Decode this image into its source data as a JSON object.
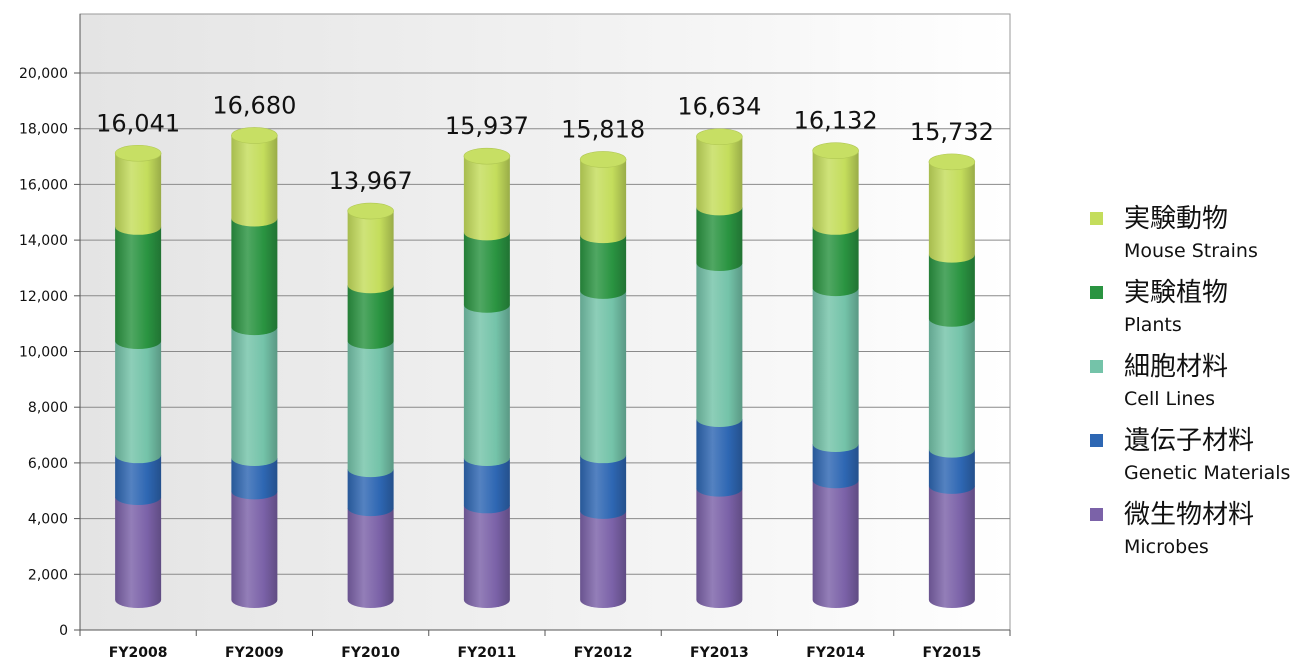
{
  "chart_data": {
    "type": "bar",
    "stacked": true,
    "style": "3d-cylinder",
    "title": "",
    "xlabel": "",
    "ylabel": "",
    "ylim": [
      0,
      22000
    ],
    "yticks": [
      0,
      2000,
      4000,
      6000,
      8000,
      10000,
      12000,
      14000,
      16000,
      18000,
      20000
    ],
    "ytick_labels": [
      "0",
      "2,000",
      "4,000",
      "6,000",
      "8,000",
      "10,000",
      "12,000",
      "14,000",
      "16,000",
      "18,000",
      "20,000"
    ],
    "grid": true,
    "legend_position": "right",
    "categories": [
      "FY2008",
      "FY2009",
      "FY2010",
      "FY2011",
      "FY2012",
      "FY2013",
      "FY2014",
      "FY2015"
    ],
    "totals": [
      16041,
      16680,
      13967,
      15937,
      15818,
      16634,
      16132,
      15732
    ],
    "total_labels": [
      "16,041",
      "16,680",
      "13,967",
      "15,937",
      "15,818",
      "16,634",
      "16,132",
      "15,732"
    ],
    "series": [
      {
        "name": "微生物材料 Microbes",
        "name_jp": "微生物材料",
        "name_en": "Microbes",
        "color": "#7b62a8",
        "values": [
          3700,
          3900,
          3300,
          3400,
          3200,
          4000,
          4300,
          4100
        ]
      },
      {
        "name": "遺伝子材料 Genetic Materials",
        "name_jp": "遺伝子材料",
        "name_en": "Genetic Materials",
        "color": "#2e67b3",
        "values": [
          1500,
          1200,
          1400,
          1700,
          2000,
          2500,
          1300,
          1300
        ]
      },
      {
        "name": "細胞材料 Cell Lines",
        "name_jp": "細胞材料",
        "name_en": "Cell Lines",
        "color": "#74c3a9",
        "values": [
          4100,
          4700,
          4600,
          5500,
          5900,
          5600,
          5600,
          4700
        ]
      },
      {
        "name": "実験植物 Plants",
        "name_jp": "実験植物",
        "name_en": "Plants",
        "color": "#2a9441",
        "values": [
          4100,
          3900,
          2000,
          2600,
          2000,
          2000,
          2200,
          2300
        ]
      },
      {
        "name": "実験動物 Mouse Strains",
        "name_jp": "実験動物",
        "name_en": "Mouse Strains",
        "color": "#c4dd5c",
        "values": [
          2641,
          2980,
          2667,
          2737,
          2718,
          2534,
          2732,
          3332
        ]
      }
    ]
  }
}
